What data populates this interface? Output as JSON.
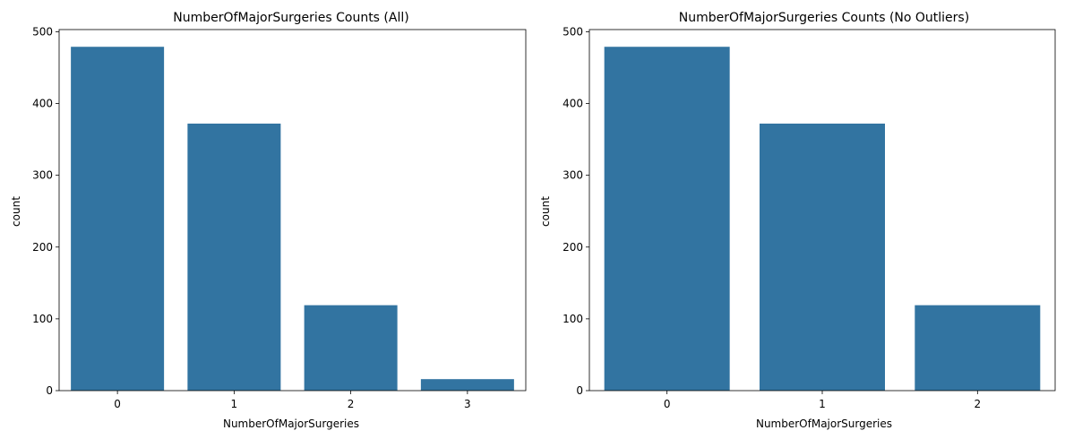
{
  "chart_data": [
    {
      "type": "bar",
      "title": "NumberOfMajorSurgeries Counts (All)",
      "xlabel": "NumberOfMajorSurgeries",
      "ylabel": "count",
      "categories": [
        "0",
        "1",
        "2",
        "3"
      ],
      "values": [
        479,
        372,
        119,
        16
      ],
      "ylim": [
        0,
        503
      ],
      "yticks": [
        "0",
        "100",
        "200",
        "300",
        "400",
        "500"
      ],
      "grid": false,
      "color": "#3274a1"
    },
    {
      "type": "bar",
      "title": "NumberOfMajorSurgeries Counts (No Outliers)",
      "xlabel": "NumberOfMajorSurgeries",
      "ylabel": "count",
      "categories": [
        "0",
        "1",
        "2"
      ],
      "values": [
        479,
        372,
        119
      ],
      "ylim": [
        0,
        503
      ],
      "yticks": [
        "0",
        "100",
        "200",
        "300",
        "400",
        "500"
      ],
      "grid": false,
      "color": "#3274a1"
    }
  ]
}
